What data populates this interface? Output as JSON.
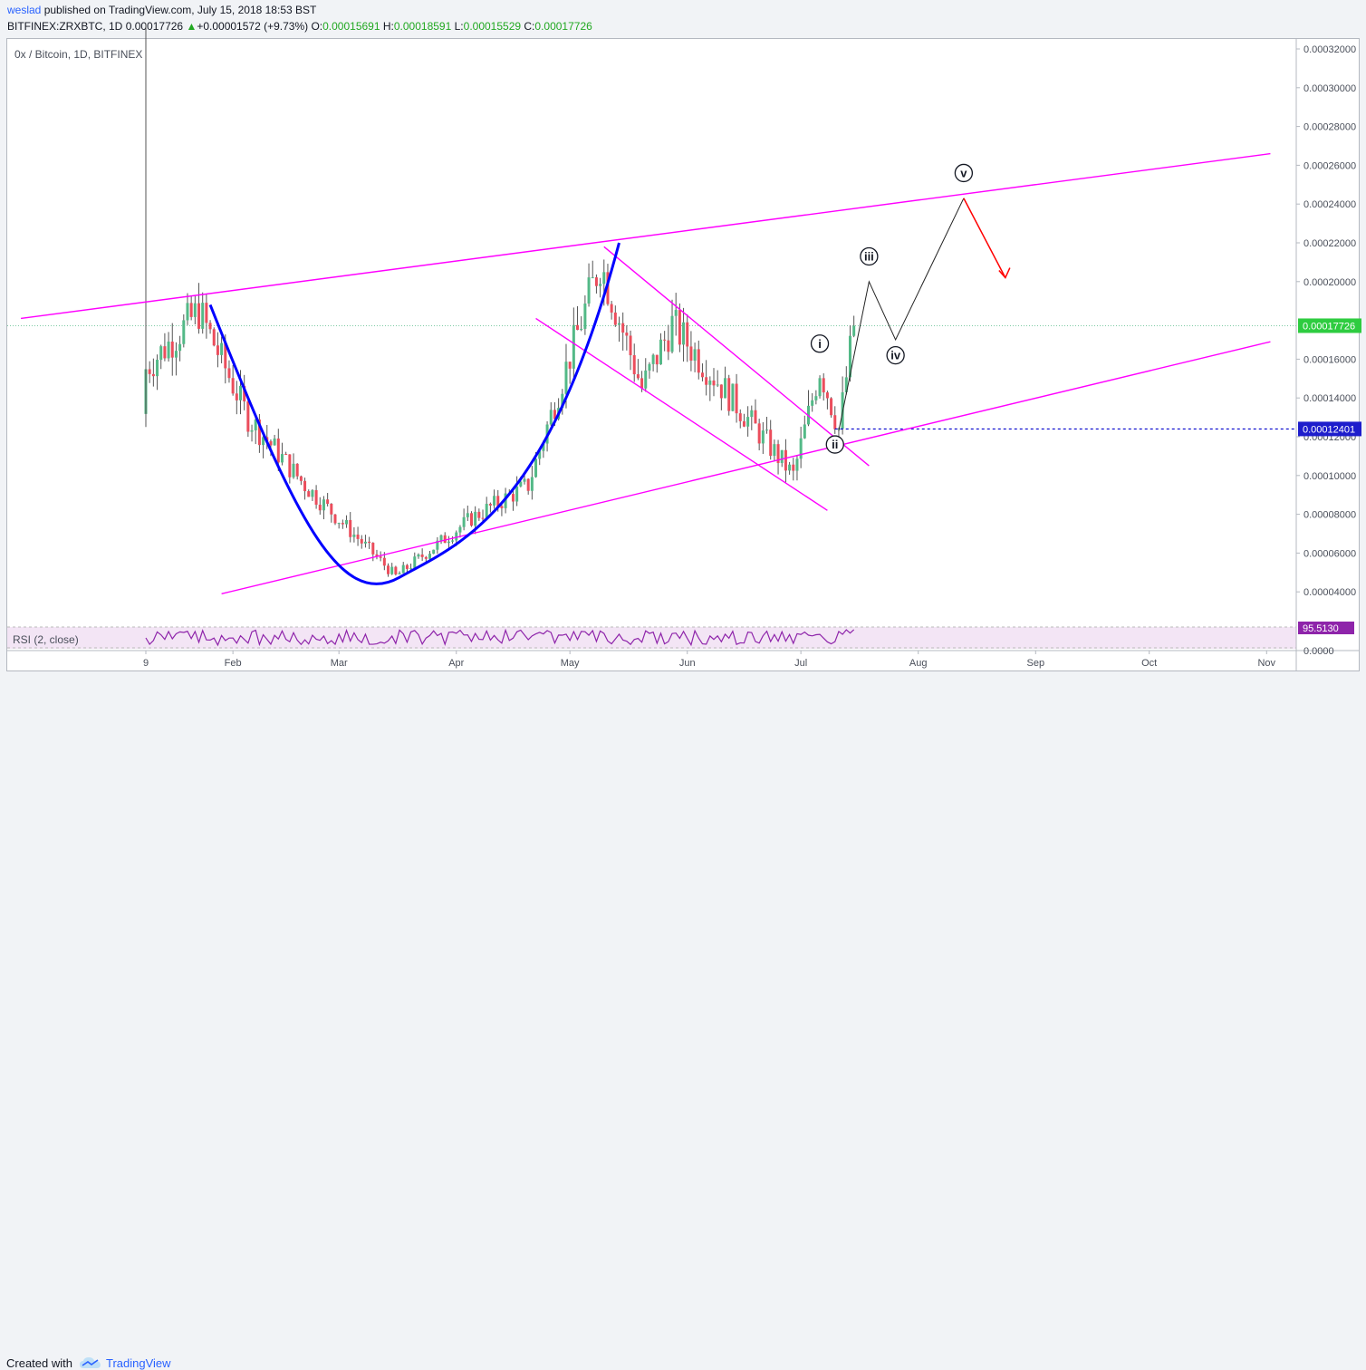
{
  "header": {
    "author": "weslad",
    "published": " published on TradingView.com, July 15, 2018 18:53 BST",
    "symbol": "BITFINEX:ZRXBTC, 1D",
    "last": "0.00017726",
    "change": "+0.00001572 (+9.73%)",
    "o_label": "O:",
    "o": "0.00015691",
    "h_label": "H:",
    "h": "0.00018591",
    "l_label": "L:",
    "l": "0.00015529",
    "c_label": "C:",
    "c": "0.00017726"
  },
  "pane_title": "0x / Bitcoin, 1D, BITFINEX",
  "rsi_label": "RSI (2, close)",
  "footer": {
    "created_with": "Created with",
    "brand": "TradingView"
  },
  "colors": {
    "up": "#53b987",
    "down": "#eb4d5c",
    "channel": "#ff00ff",
    "curve": "#0000ff",
    "arrow": "#ff0000",
    "rsi": "#8e24aa",
    "support": "#0000cc"
  },
  "chart_data": {
    "type": "candlestick",
    "title": "0x / Bitcoin, 1D, BITFINEX",
    "y_axis_labels": [
      "0.00032000",
      "0.00030000",
      "0.00028000",
      "0.00026000",
      "0.00024000",
      "0.00022000",
      "0.00020000",
      "0.00016000",
      "0.00014000",
      "0.00012000",
      "0.00010000",
      "0.00008000",
      "0.00006000",
      "0.00004000"
    ],
    "ylim": [
      2e-05,
      0.000333
    ],
    "x_tick_labels": [
      "9",
      "Feb",
      "Mar",
      "Apr",
      "May",
      "Jun",
      "Jul",
      "Aug",
      "Sep",
      "Oct",
      "Nov"
    ],
    "last_price_label": "0.00017726",
    "support_label": "0.00012401",
    "support_value": 0.00012401,
    "last_price_value": 0.00017726,
    "wave_labels": [
      "i",
      "ii",
      "iii",
      "iv",
      "v"
    ],
    "rsi": {
      "value_label": "95.5130",
      "zero_label": "0.0000"
    },
    "anchor_points": [
      {
        "date": "2018-01-09",
        "close": 0.000155
      },
      {
        "date": "2018-01-23",
        "close": 0.000185
      },
      {
        "date": "2018-02-05",
        "close": 0.00013
      },
      {
        "date": "2018-02-20",
        "close": 9.5e-05
      },
      {
        "date": "2018-03-16",
        "close": 4.8e-05
      },
      {
        "date": "2018-04-05",
        "close": 7.8e-05
      },
      {
        "date": "2018-04-20",
        "close": 9.5e-05
      },
      {
        "date": "2018-05-09",
        "close": 0.00021
      },
      {
        "date": "2018-05-20",
        "close": 0.000145
      },
      {
        "date": "2018-05-28",
        "close": 0.000178
      },
      {
        "date": "2018-06-29",
        "close": 0.0001
      },
      {
        "date": "2018-07-06",
        "close": 0.000155
      },
      {
        "date": "2018-07-11",
        "close": 0.000124
      },
      {
        "date": "2018-07-15",
        "close": 0.00017726
      }
    ],
    "projection": [
      {
        "date": "2018-07-06",
        "value": 0.000159
      },
      {
        "date": "2018-07-11",
        "value": 0.000123
      },
      {
        "date": "2018-07-19",
        "value": 0.0002
      },
      {
        "date": "2018-07-26",
        "value": 0.00017
      },
      {
        "date": "2018-08-13",
        "value": 0.000243
      }
    ]
  }
}
